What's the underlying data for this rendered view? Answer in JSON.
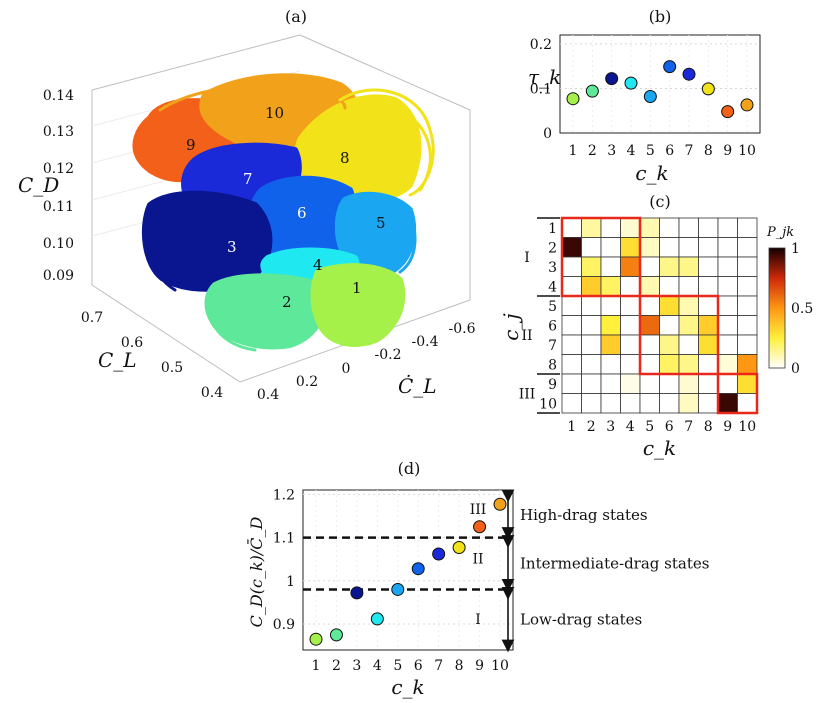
{
  "panels": {
    "a": "(a)",
    "b": "(b)",
    "c": "(c)",
    "d": "(d)"
  },
  "chart_data": [
    {
      "id": "a",
      "type": "scatter",
      "title": "",
      "xlabel": "C_L",
      "ylabel": "Ċ_L",
      "zlabel": "C_D",
      "z_ticks": [
        "0.14",
        "0.13",
        "0.12",
        "0.11",
        "0.10",
        "0.09"
      ],
      "x_ticks": [
        "0.7",
        "0.6",
        "0.5",
        "0.4"
      ],
      "y_ticks": [
        "0.4",
        "0.2",
        "0",
        "-0.2",
        "-0.4",
        "-0.6"
      ],
      "clusters": [
        {
          "label": "1",
          "color": "#a6f04a"
        },
        {
          "label": "2",
          "color": "#5ee89a"
        },
        {
          "label": "3",
          "color": "#0a1690"
        },
        {
          "label": "4",
          "color": "#20e8f0"
        },
        {
          "label": "5",
          "color": "#1aa6f0"
        },
        {
          "label": "6",
          "color": "#1062ea"
        },
        {
          "label": "7",
          "color": "#1a2ad8"
        },
        {
          "label": "8",
          "color": "#f2e21a"
        },
        {
          "label": "9",
          "color": "#f2601a"
        },
        {
          "label": "10",
          "color": "#f2a21a"
        }
      ]
    },
    {
      "id": "b",
      "type": "scatter",
      "title": "",
      "xlabel": "c_k",
      "ylabel": "τ_k",
      "ylim": [
        0,
        0.22
      ],
      "y_ticks": [
        "0",
        "0.1",
        "0.2"
      ],
      "categories": [
        "1",
        "2",
        "3",
        "4",
        "5",
        "6",
        "7",
        "8",
        "9",
        "10"
      ],
      "values": [
        0.077,
        0.094,
        0.122,
        0.112,
        0.082,
        0.149,
        0.132,
        0.099,
        0.048,
        0.063
      ],
      "colors": [
        "#a6f04a",
        "#5ee89a",
        "#0a1690",
        "#20e8f0",
        "#1aa6f0",
        "#1062ea",
        "#1a2ad8",
        "#f2e21a",
        "#f2601a",
        "#f2a21a"
      ]
    },
    {
      "id": "c",
      "type": "heatmap",
      "title": "",
      "xlabel": "c_k",
      "ylabel": "c_j",
      "colorbar_label": "P_jk",
      "colorbar_ticks": [
        "1",
        "0.5",
        "0"
      ],
      "row_labels": [
        "1",
        "2",
        "3",
        "4",
        "5",
        "6",
        "7",
        "8",
        "9",
        "10"
      ],
      "col_labels": [
        "1",
        "2",
        "3",
        "4",
        "5",
        "6",
        "7",
        "8",
        "9",
        "10"
      ],
      "groups": [
        {
          "label": "I",
          "rows": [
            1,
            4
          ]
        },
        {
          "label": "II",
          "rows": [
            5,
            8
          ]
        },
        {
          "label": "III",
          "rows": [
            9,
            10
          ]
        }
      ],
      "matrix": [
        [
          0,
          0.12,
          0,
          0.06,
          0.1,
          0,
          0,
          0,
          0,
          0
        ],
        [
          0.95,
          0,
          0,
          0.3,
          0.08,
          0,
          0,
          0,
          0,
          0
        ],
        [
          0,
          0.2,
          0,
          0.55,
          0,
          0.15,
          0.15,
          0,
          0,
          0
        ],
        [
          0,
          0.35,
          0.2,
          0,
          0.1,
          0,
          0,
          0,
          0,
          0
        ],
        [
          0,
          0,
          0,
          0,
          0,
          0.3,
          0.1,
          0,
          0,
          0
        ],
        [
          0,
          0,
          0.25,
          0,
          0.6,
          0,
          0.15,
          0.35,
          0,
          0
        ],
        [
          0,
          0,
          0.35,
          0,
          0,
          0.15,
          0,
          0.3,
          0,
          0
        ],
        [
          0,
          0,
          0,
          0,
          0,
          0.2,
          0.15,
          0,
          0.05,
          0.5
        ],
        [
          0,
          0,
          0,
          0.03,
          0,
          0,
          0.06,
          0,
          0,
          0.3
        ],
        [
          0,
          0,
          0,
          0,
          0,
          0,
          0.08,
          0,
          0.95,
          0
        ]
      ]
    },
    {
      "id": "d",
      "type": "scatter",
      "title": "",
      "xlabel": "c_k",
      "ylabel": "C_D(c_k)/C̄_D",
      "ylim": [
        0.84,
        1.21
      ],
      "y_ticks": [
        "0.9",
        "1",
        "1.1",
        "1.2"
      ],
      "categories": [
        "1",
        "2",
        "3",
        "4",
        "5",
        "6",
        "7",
        "8",
        "9",
        "10"
      ],
      "values": [
        0.865,
        0.875,
        0.972,
        0.912,
        0.98,
        1.028,
        1.062,
        1.077,
        1.125,
        1.177
      ],
      "colors": [
        "#a6f04a",
        "#5ee89a",
        "#0a1690",
        "#20e8f0",
        "#1aa6f0",
        "#1062ea",
        "#1a2ad8",
        "#f2e21a",
        "#f2601a",
        "#f2a21a"
      ],
      "thresholds": [
        0.98,
        1.1
      ],
      "regions": [
        {
          "roman": "III",
          "label": "High-drag states"
        },
        {
          "roman": "II",
          "label": "Intermediate-drag states"
        },
        {
          "roman": "I",
          "label": "Low-drag states"
        }
      ]
    }
  ]
}
